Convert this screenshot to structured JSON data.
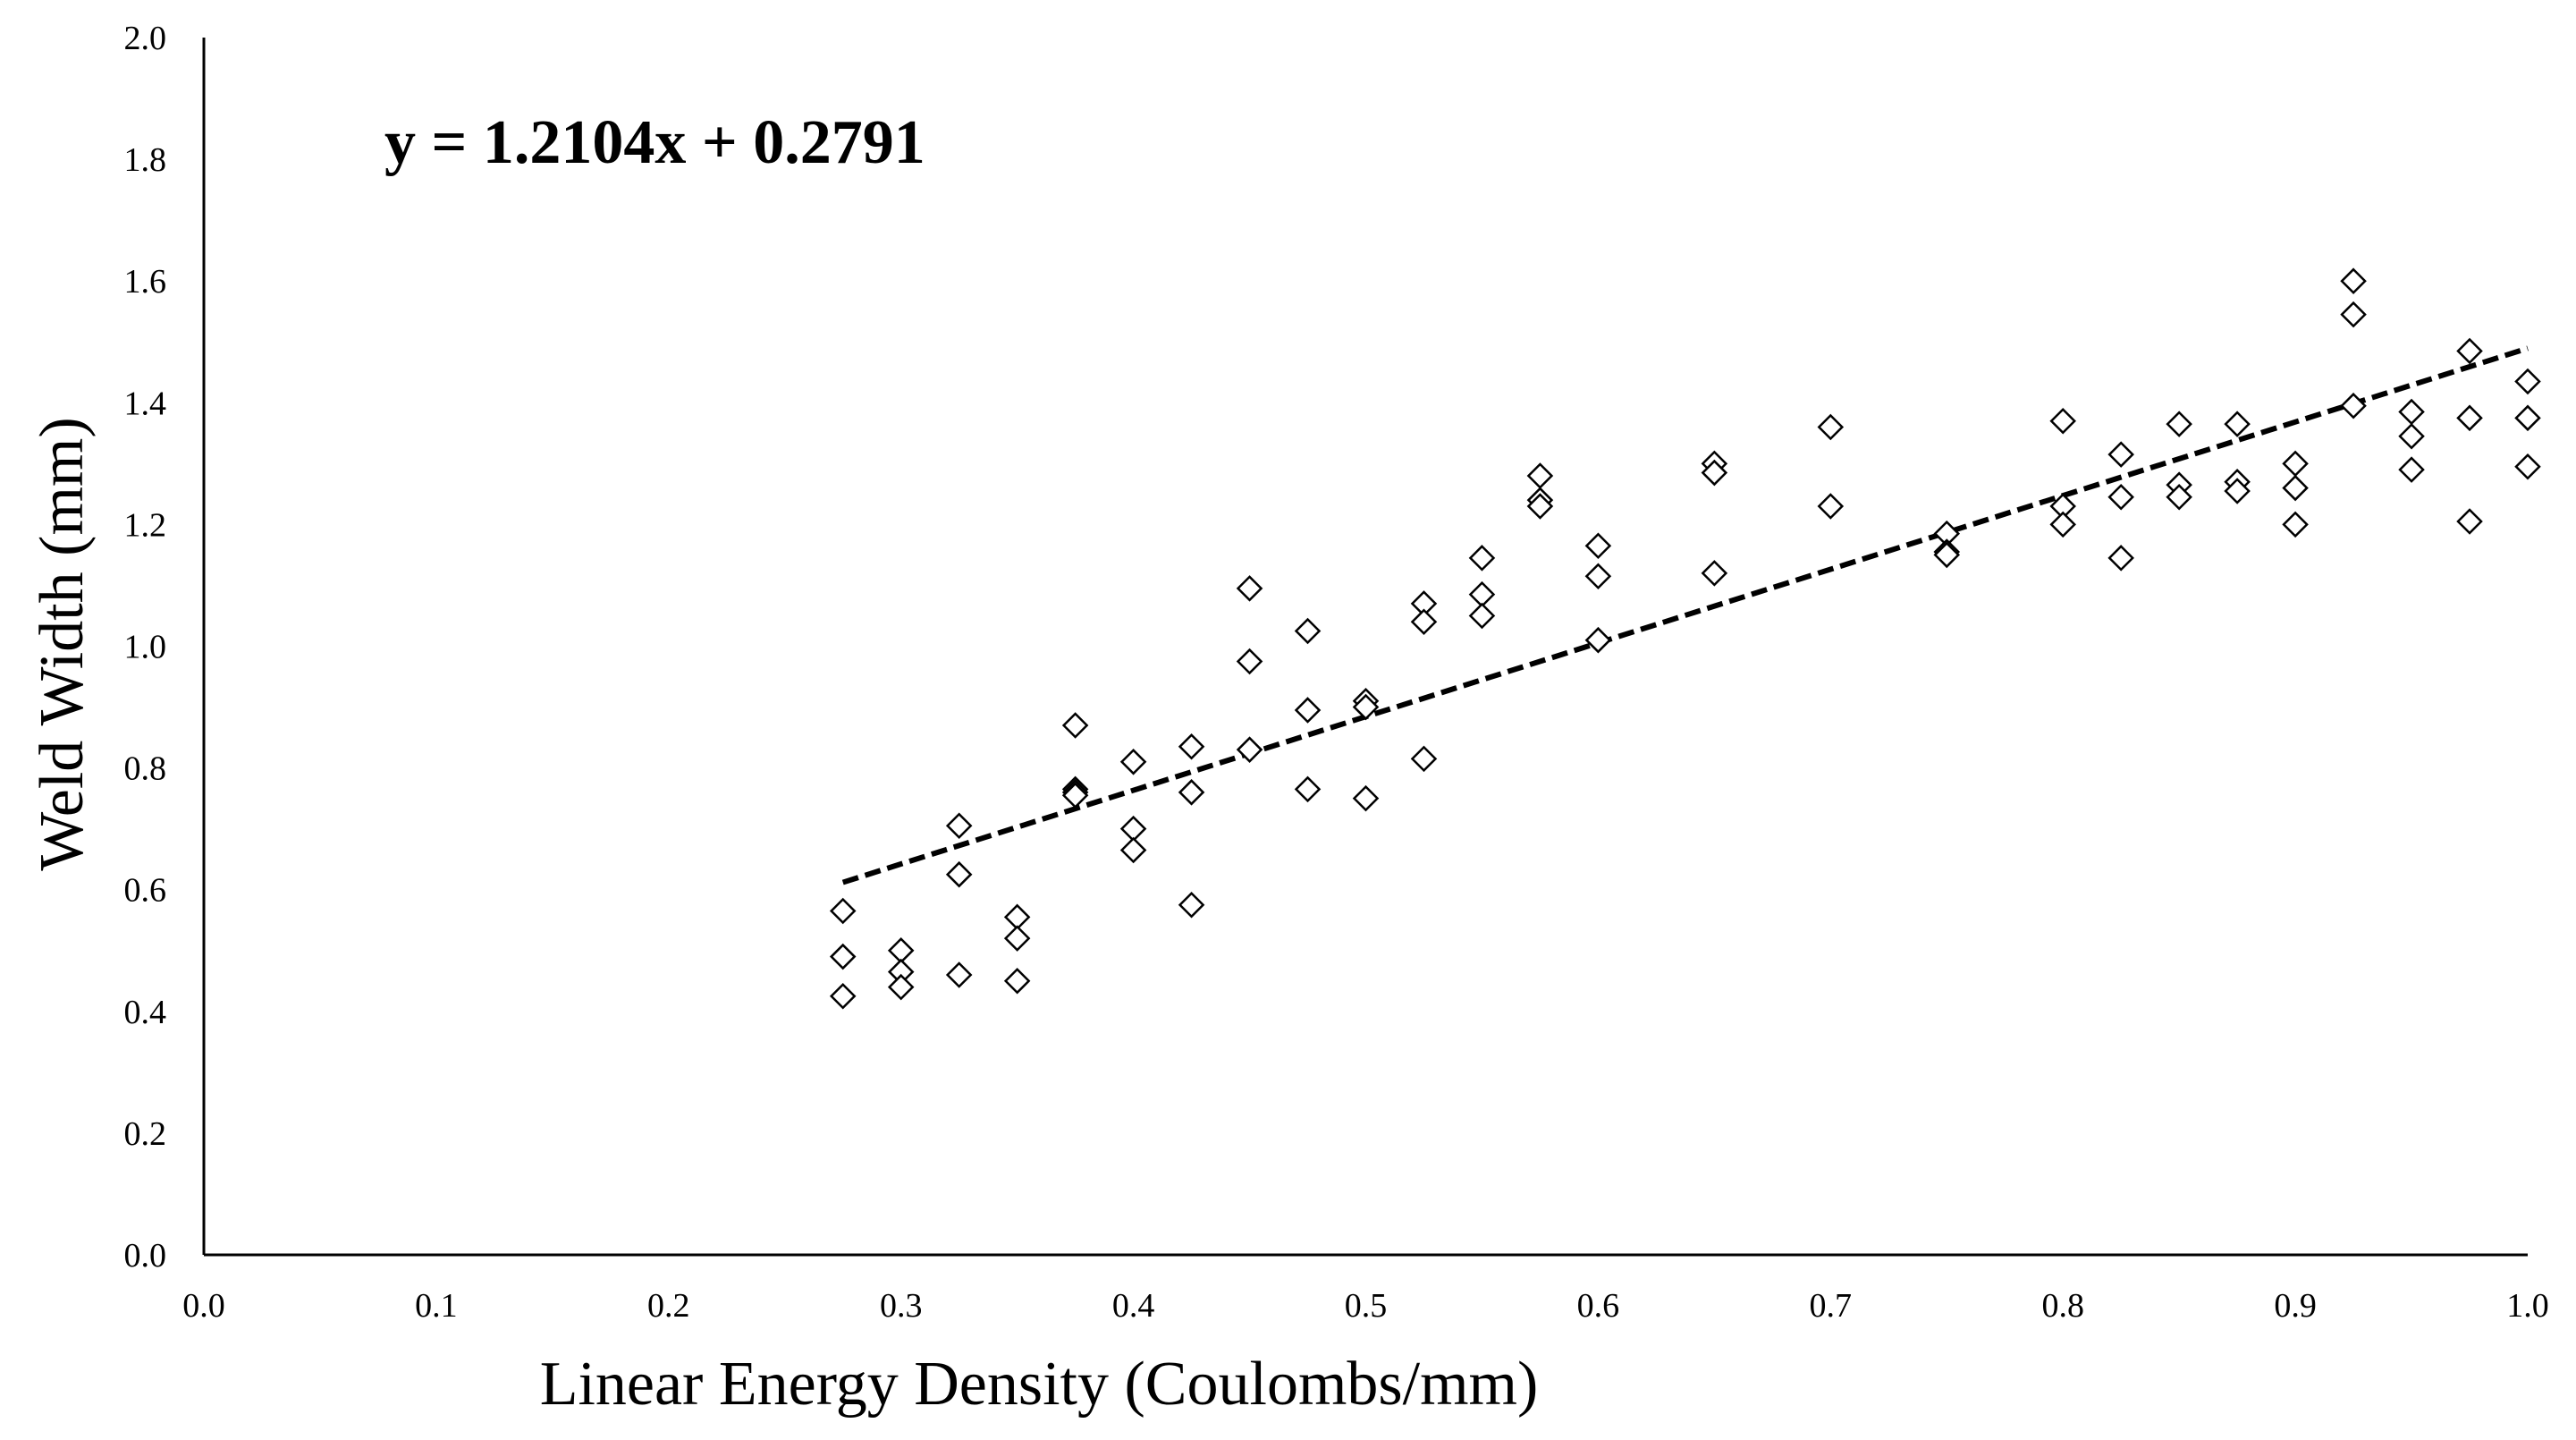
{
  "chart_data": {
    "type": "scatter",
    "title": "",
    "xlabel": "Linear Energy Density (Coulombs/mm)",
    "ylabel": "Weld Width (mm)",
    "xlim": [
      0.0,
      1.0
    ],
    "ylim": [
      0.0,
      2.0
    ],
    "x_ticks": [
      "0.0",
      "0.1",
      "0.2",
      "0.3",
      "0.4",
      "0.5",
      "0.6",
      "0.7",
      "0.8",
      "0.9",
      "1.0"
    ],
    "y_ticks": [
      "0.0",
      "0.2",
      "0.4",
      "0.6",
      "0.8",
      "1.0",
      "1.2",
      "1.4",
      "1.6",
      "1.8",
      "2.0"
    ],
    "grid": false,
    "marker": "open-diamond",
    "colors": {
      "marker_stroke": "#000000",
      "marker_fill": "#ffffff",
      "trendline": "#000000"
    },
    "series": [
      {
        "name": "Weld Width",
        "points": [
          [
            0.275,
            0.565
          ],
          [
            0.275,
            0.49
          ],
          [
            0.275,
            0.425
          ],
          [
            0.3,
            0.5
          ],
          [
            0.3,
            0.465
          ],
          [
            0.3,
            0.44
          ],
          [
            0.325,
            0.705
          ],
          [
            0.325,
            0.625
          ],
          [
            0.325,
            0.46
          ],
          [
            0.35,
            0.555
          ],
          [
            0.35,
            0.52
          ],
          [
            0.35,
            0.45
          ],
          [
            0.375,
            0.87
          ],
          [
            0.375,
            0.765
          ],
          [
            0.375,
            0.76
          ],
          [
            0.375,
            0.755
          ],
          [
            0.4,
            0.81
          ],
          [
            0.4,
            0.7
          ],
          [
            0.4,
            0.665
          ],
          [
            0.425,
            0.835
          ],
          [
            0.425,
            0.76
          ],
          [
            0.425,
            0.575
          ],
          [
            0.45,
            1.095
          ],
          [
            0.45,
            0.975
          ],
          [
            0.45,
            0.83
          ],
          [
            0.475,
            1.025
          ],
          [
            0.475,
            0.895
          ],
          [
            0.475,
            0.765
          ],
          [
            0.5,
            0.91
          ],
          [
            0.5,
            0.9
          ],
          [
            0.5,
            0.75
          ],
          [
            0.525,
            1.07
          ],
          [
            0.525,
            1.04
          ],
          [
            0.525,
            0.815
          ],
          [
            0.55,
            1.145
          ],
          [
            0.55,
            1.085
          ],
          [
            0.55,
            1.05
          ],
          [
            0.575,
            1.28
          ],
          [
            0.575,
            1.24
          ],
          [
            0.575,
            1.23
          ],
          [
            0.6,
            1.165
          ],
          [
            0.6,
            1.115
          ],
          [
            0.6,
            1.01
          ],
          [
            0.65,
            1.3
          ],
          [
            0.65,
            1.285
          ],
          [
            0.65,
            1.12
          ],
          [
            0.7,
            1.36
          ],
          [
            0.7,
            1.23
          ],
          [
            0.75,
            1.185
          ],
          [
            0.75,
            1.155
          ],
          [
            0.75,
            1.15
          ],
          [
            0.8,
            1.37
          ],
          [
            0.8,
            1.23
          ],
          [
            0.8,
            1.2
          ],
          [
            0.825,
            1.315
          ],
          [
            0.825,
            1.245
          ],
          [
            0.825,
            1.145
          ],
          [
            0.85,
            1.365
          ],
          [
            0.85,
            1.265
          ],
          [
            0.85,
            1.245
          ],
          [
            0.875,
            1.365
          ],
          [
            0.875,
            1.27
          ],
          [
            0.875,
            1.255
          ],
          [
            0.9,
            1.3
          ],
          [
            0.9,
            1.26
          ],
          [
            0.9,
            1.2
          ],
          [
            0.925,
            1.6
          ],
          [
            0.925,
            1.545
          ],
          [
            0.925,
            1.395
          ],
          [
            0.95,
            1.385
          ],
          [
            0.95,
            1.345
          ],
          [
            0.95,
            1.29
          ],
          [
            0.975,
            1.485
          ],
          [
            0.975,
            1.375
          ],
          [
            0.975,
            1.205
          ],
          [
            1.0,
            1.435
          ],
          [
            1.0,
            1.375
          ],
          [
            1.0,
            1.295
          ]
        ]
      }
    ],
    "trendline": {
      "type": "linear",
      "slope": 1.2104,
      "intercept": 0.2791,
      "x_range": [
        0.275,
        1.0
      ],
      "equation_label": "y = 1.2104x + 0.2791",
      "style": "dashed"
    }
  }
}
